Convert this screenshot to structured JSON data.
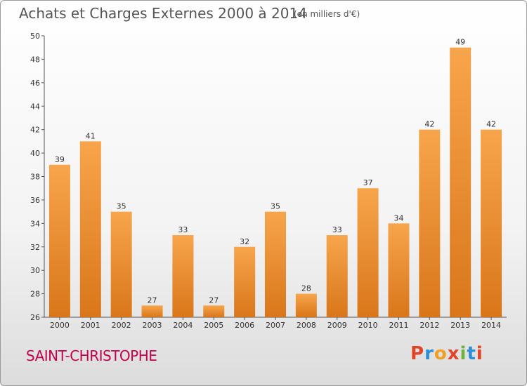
{
  "header": {
    "title": "Achats et Charges Externes 2000 à 2014",
    "subtitle": "(en milliers d'€)"
  },
  "footer": {
    "commune": "SAINT-CHRISTOPHE",
    "logo_text": "Proxiti",
    "logo_colors": [
      "#e0452a",
      "#2a8fd6",
      "#f0a020",
      "#e0452a",
      "#6cb33e",
      "#2a8fd6",
      "#e0452a"
    ]
  },
  "chart_data": {
    "type": "bar",
    "title": "Achats et Charges Externes 2000 à 2014",
    "subtitle": "(en milliers d'€)",
    "categories": [
      "2000",
      "2001",
      "2002",
      "2003",
      "2004",
      "2005",
      "2006",
      "2007",
      "2008",
      "2009",
      "2010",
      "2011",
      "2012",
      "2013",
      "2014"
    ],
    "values": [
      39,
      41,
      35,
      27,
      33,
      27,
      32,
      35,
      28,
      33,
      37,
      34,
      42,
      49,
      42
    ],
    "ylim": [
      26,
      50
    ],
    "yticks": [
      26,
      28,
      30,
      32,
      34,
      36,
      38,
      40,
      42,
      44,
      46,
      48,
      50
    ],
    "grid": false,
    "bar_color_top": "#f7a54c",
    "bar_color_bottom": "#d9761a",
    "xlabel": "",
    "ylabel": ""
  }
}
